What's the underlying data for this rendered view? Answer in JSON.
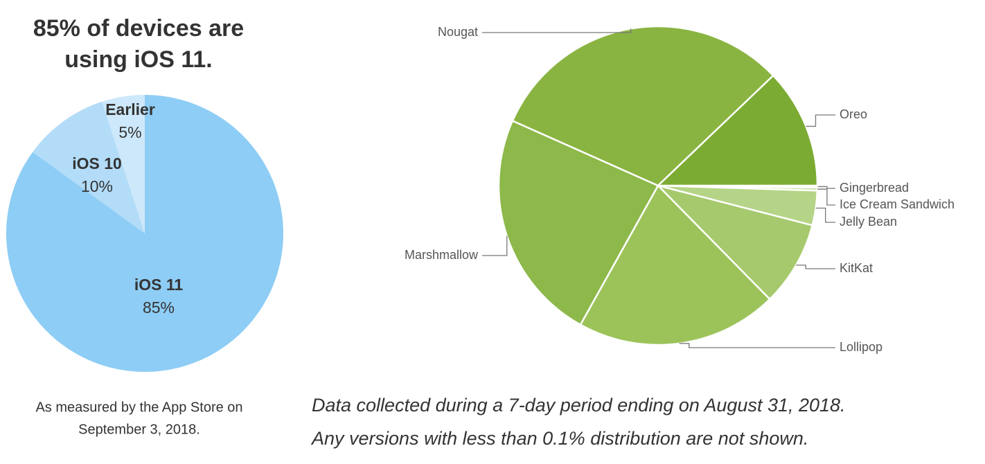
{
  "chart_data": [
    {
      "type": "pie",
      "title": "85% of devices are using iOS 11.",
      "caption": [
        "As measured by the App Store on",
        "September 3, 2018."
      ],
      "categories": [
        "iOS 11",
        "iOS 10",
        "Earlier"
      ],
      "values": [
        85,
        10,
        5
      ],
      "value_labels": [
        "85%",
        "10%",
        "5%"
      ],
      "colors": [
        "#8ecdf5",
        "#b2dcf8",
        "#cde8fa"
      ]
    },
    {
      "type": "pie",
      "caption": [
        "Data collected during a 7-day period ending on August 31, 2018.",
        "Any versions with less than 0.1% distribution are not shown."
      ],
      "categories": [
        "Gingerbread",
        "Ice Cream Sandwich",
        "Jelly Bean",
        "KitKat",
        "Lollipop",
        "Marshmallow",
        "Nougat",
        "Oreo"
      ],
      "values": [
        0.2,
        0.3,
        3.5,
        8.6,
        20.4,
        23.5,
        31.1,
        12.1
      ],
      "colors": [
        "#d5e8b8",
        "#c8e0a3",
        "#b6d487",
        "#a6c96d",
        "#9cc35a",
        "#8db84a",
        "#89b441",
        "#7cab33"
      ]
    }
  ]
}
